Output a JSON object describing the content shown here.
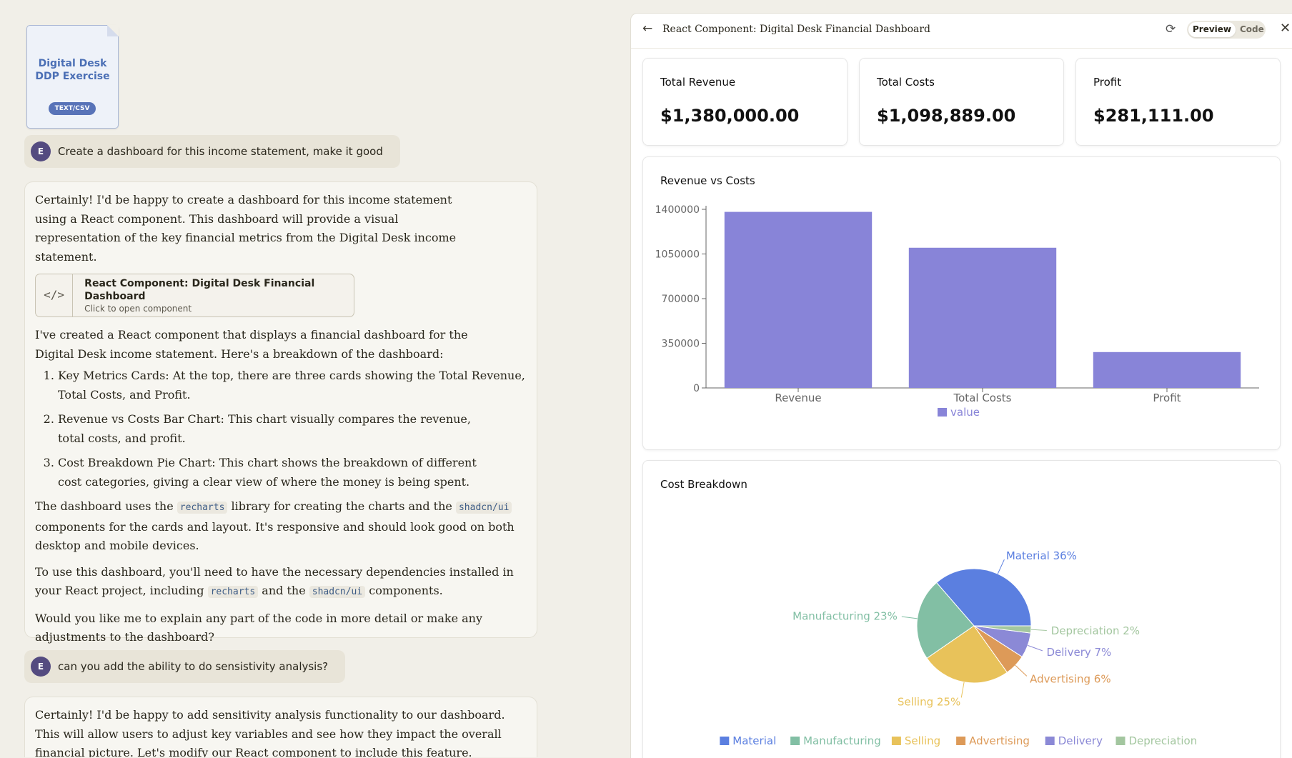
{
  "file_card": {
    "title_line1": "Digital Desk",
    "title_line2": "DDP Exercise",
    "badge": "TEXT/CSV"
  },
  "messages": {
    "user1": {
      "avatar": "E",
      "text": "Create a dashboard for this income statement, make it good"
    },
    "assistant1": {
      "intro": "Certainly! I'd be happy to create a dashboard for this income statement using a React component. This dashboard will provide a visual representation of the key financial metrics from the Digital Desk income statement.",
      "artifact_title": "React Component: Digital Desk Financial Dashboard",
      "artifact_sub": "Click to open component",
      "p2": "I've created a React component that displays a financial dashboard for the Digital Desk income statement. Here's a breakdown of the dashboard:",
      "items": [
        "Key Metrics Cards: At the top, there are three cards showing the Total Revenue, Total Costs, and Profit.",
        "Revenue vs Costs Bar Chart: This chart visually compares the revenue, total costs, and profit.",
        "Cost Breakdown Pie Chart: This chart shows the breakdown of different cost categories, giving a clear view of where the money is being spent."
      ],
      "p3_a": "The dashboard uses the",
      "code1": "recharts",
      "p3_b": "library for creating the charts and the",
      "code2": "shadcn/ui",
      "p3_c": "components for the cards and layout. It's responsive and should look good on both desktop and mobile devices.",
      "p4_a": "To use this dashboard, you'll need to have the necessary dependencies installed in your React project, including",
      "code3": "recharts",
      "p4_b": "and the",
      "code4": "shadcn/ui",
      "p4_c": "components.",
      "p5": "Would you like me to explain any part of the code in more detail or make any adjustments to the dashboard?"
    },
    "user2": {
      "avatar": "E",
      "text": "can you add the ability to do sensistivity analysis?"
    },
    "assistant2": {
      "intro": "Certainly! I'd be happy to add sensitivity analysis functionality to our dashboard. This will allow users to adjust key variables and see how they impact the overall financial picture. Let's modify our React component to include this feature."
    }
  },
  "panel": {
    "title": "React Component: Digital Desk Financial Dashboard",
    "back_icon": "←",
    "refresh_icon": "⟳",
    "close_icon": "✕",
    "tab_preview": "Preview",
    "tab_code": "Code"
  },
  "metrics": [
    {
      "label": "Total Revenue",
      "value": "$1,380,000.00"
    },
    {
      "label": "Total Costs",
      "value": "$1,098,889.00"
    },
    {
      "label": "Profit",
      "value": "$281,111.00"
    }
  ],
  "chart_data": [
    {
      "type": "bar",
      "title": "Revenue vs Costs",
      "categories": [
        "Revenue",
        "Total Costs",
        "Profit"
      ],
      "series": [
        {
          "name": "value",
          "values": [
            1380000,
            1098889,
            281111
          ],
          "color": "#8884d8"
        }
      ],
      "ylim": [
        0,
        1400000
      ],
      "yticks": [
        0,
        350000,
        700000,
        1050000,
        1400000
      ],
      "legend": "bottom"
    },
    {
      "type": "pie",
      "title": "Cost Breakdown",
      "slices": [
        {
          "name": "Material",
          "percent": 36,
          "color": "#5b7fe0"
        },
        {
          "name": "Manufacturing",
          "percent": 23,
          "color": "#82bfa4"
        },
        {
          "name": "Selling",
          "percent": 25,
          "color": "#e8c25a"
        },
        {
          "name": "Advertising",
          "percent": 6,
          "color": "#dd9a58"
        },
        {
          "name": "Delivery",
          "percent": 7,
          "color": "#8b89d6"
        },
        {
          "name": "Depreciation",
          "percent": 2,
          "color": "#a3c69f"
        }
      ],
      "legend": "bottom"
    }
  ]
}
